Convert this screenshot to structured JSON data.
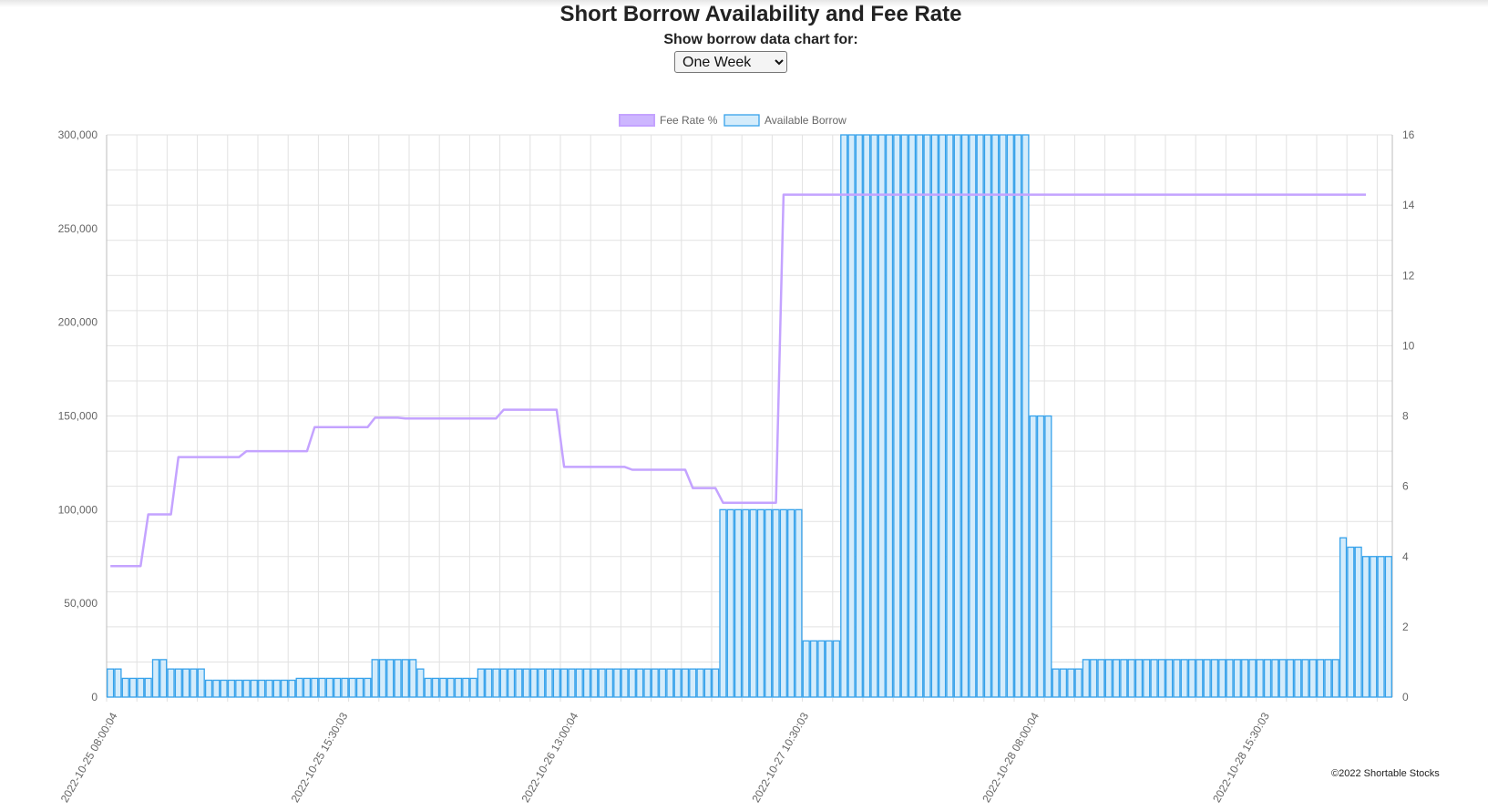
{
  "page": {
    "title": "Short Borrow Availability and Fee Rate",
    "selector_label": "Show borrow data chart for:",
    "selected_range": "One Week",
    "copyright": "©2022 Shortable Stocks"
  },
  "colors": {
    "fee_line": "#c4a3ff",
    "fee_fill": "#cdb6ff",
    "bar_border": "#36a2eb",
    "bar_fill": "#d4ecfb",
    "grid": "#e2e2e2",
    "tick_text": "#666666"
  },
  "chart_data": {
    "type": "bar",
    "title": "",
    "legend": [
      "Fee Rate %",
      "Available Borrow"
    ],
    "legend_position": "top",
    "grid": true,
    "y_left": {
      "ticks": [
        "300,000",
        "250,000",
        "200,000",
        "150,000",
        "100,000",
        "50,000",
        "0"
      ],
      "range": [
        0,
        300000
      ]
    },
    "y_right": {
      "ticks": [
        "16",
        "14",
        "12",
        "10",
        "8",
        "6",
        "4",
        "2",
        "0"
      ],
      "range": [
        0,
        16
      ]
    },
    "x_tick_labels": [
      "2022-10-25 08:00:04",
      "2022-10-25 15:30:03",
      "2022-10-26 13:00:04",
      "2022-10-27 10:30:03",
      "2022-10-28 08:00:04",
      "2022-10-28 15:30:03"
    ],
    "series": [
      {
        "name": "Available Borrow",
        "kind": "bar",
        "axis": "left",
        "values": [
          15000,
          15000,
          10000,
          10000,
          10000,
          10000,
          20000,
          20000,
          15000,
          15000,
          15000,
          15000,
          15000,
          9000,
          9000,
          9000,
          9000,
          9000,
          9000,
          9000,
          9000,
          9000,
          9000,
          9000,
          9000,
          10000,
          10000,
          10000,
          10000,
          10000,
          10000,
          10000,
          10000,
          10000,
          10000,
          20000,
          20000,
          20000,
          20000,
          20000,
          20000,
          15000,
          10000,
          10000,
          10000,
          10000,
          10000,
          10000,
          10000,
          15000,
          15000,
          15000,
          15000,
          15000,
          15000,
          15000,
          15000,
          15000,
          15000,
          15000,
          15000,
          15000,
          15000,
          15000,
          15000,
          15000,
          15000,
          15000,
          15000,
          15000,
          15000,
          15000,
          15000,
          15000,
          15000,
          15000,
          15000,
          15000,
          15000,
          15000,
          15000,
          100000,
          100000,
          100000,
          100000,
          100000,
          100000,
          100000,
          100000,
          100000,
          100000,
          100000,
          30000,
          30000,
          30000,
          30000,
          30000,
          300000,
          300000,
          300000,
          300000,
          300000,
          300000,
          300000,
          300000,
          300000,
          300000,
          300000,
          300000,
          300000,
          300000,
          300000,
          300000,
          300000,
          300000,
          300000,
          300000,
          300000,
          300000,
          300000,
          300000,
          300000,
          150000,
          150000,
          150000,
          15000,
          15000,
          15000,
          15000,
          20000,
          20000,
          20000,
          20000,
          20000,
          20000,
          20000,
          20000,
          20000,
          20000,
          20000,
          20000,
          20000,
          20000,
          20000,
          20000,
          20000,
          20000,
          20000,
          20000,
          20000,
          20000,
          20000,
          20000,
          20000,
          20000,
          20000,
          20000,
          20000,
          20000,
          20000,
          20000,
          20000,
          20000,
          85000,
          80000,
          80000,
          75000,
          75000,
          75000,
          75000
        ]
      },
      {
        "name": "Fee Rate %",
        "kind": "line",
        "axis": "right",
        "values": [
          3.73,
          3.73,
          3.73,
          3.73,
          3.73,
          5.2,
          5.2,
          5.2,
          5.2,
          6.83,
          6.83,
          6.83,
          6.83,
          6.83,
          6.83,
          6.83,
          6.83,
          6.83,
          7.0,
          7.0,
          7.0,
          7.0,
          7.0,
          7.0,
          7.0,
          7.0,
          7.0,
          7.68,
          7.68,
          7.68,
          7.68,
          7.68,
          7.68,
          7.68,
          7.68,
          7.95,
          7.95,
          7.95,
          7.95,
          7.93,
          7.93,
          7.93,
          7.93,
          7.93,
          7.93,
          7.93,
          7.93,
          7.93,
          7.93,
          7.93,
          7.93,
          7.93,
          8.18,
          8.18,
          8.18,
          8.18,
          8.18,
          8.18,
          8.18,
          8.18,
          6.55,
          6.55,
          6.55,
          6.55,
          6.55,
          6.55,
          6.55,
          6.55,
          6.55,
          6.47,
          6.47,
          6.47,
          6.47,
          6.47,
          6.47,
          6.47,
          6.47,
          5.95,
          5.95,
          5.95,
          5.95,
          5.53,
          5.53,
          5.53,
          5.53,
          5.53,
          5.53,
          5.53,
          5.53,
          14.3,
          14.3,
          14.3,
          14.3,
          14.3,
          14.3,
          14.3,
          14.3,
          14.3,
          14.3,
          14.3,
          14.3,
          14.3,
          14.3,
          14.3,
          14.3,
          14.3,
          14.3,
          14.3,
          14.3,
          14.3,
          14.3,
          14.3,
          14.3,
          14.3,
          14.3,
          14.3,
          14.3,
          14.3,
          14.3,
          14.3,
          14.3,
          14.3,
          14.3,
          14.3,
          14.3,
          14.3,
          14.3,
          14.3,
          14.3,
          14.3,
          14.3,
          14.3,
          14.3,
          14.3,
          14.3,
          14.3,
          14.3,
          14.3,
          14.3,
          14.3,
          14.3,
          14.3,
          14.3,
          14.3,
          14.3,
          14.3,
          14.3,
          14.3,
          14.3,
          14.3,
          14.3,
          14.3,
          14.3,
          14.3,
          14.3,
          14.3,
          14.3,
          14.3,
          14.3,
          14.3,
          14.3,
          14.3,
          14.3,
          14.3,
          14.3,
          14.3,
          14.3
        ]
      }
    ]
  }
}
